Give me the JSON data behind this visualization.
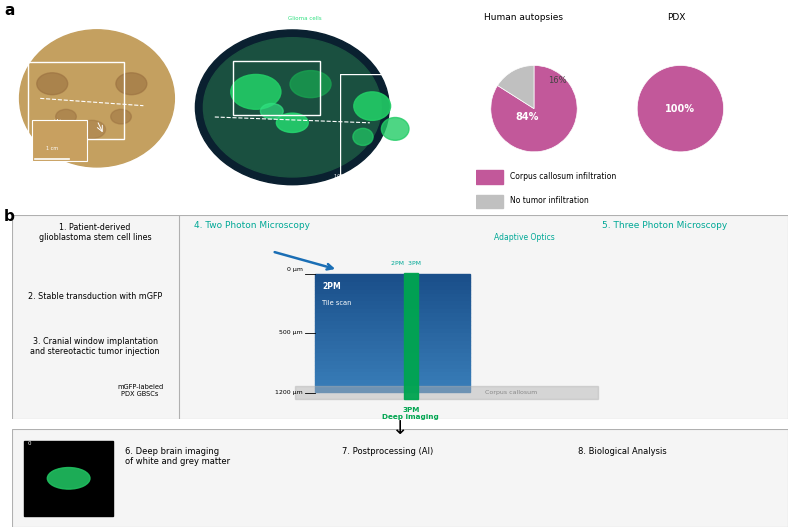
{
  "fig_width": 8.0,
  "fig_height": 5.3,
  "dpi": 100,
  "bg_color": "#ffffff",
  "panel_a_label": "a",
  "panel_b_label": "b",
  "pie1_title": "Human autopsies",
  "pie2_title": "PDX",
  "pie1_values": [
    84,
    16
  ],
  "pie2_values": [
    100
  ],
  "pie_colors_full": [
    "#c2589a",
    "#c0c0c0"
  ],
  "pie_color_single": [
    "#c2589a"
  ],
  "legend_labels": [
    "Corpus callosum infiltration",
    "No tumor infiltration"
  ],
  "legend_colors": [
    "#c2589a",
    "#c0c0c0"
  ],
  "pie1_pct_big": "84%",
  "pie1_pct_small": "16%",
  "pie2_pct": "100%",
  "step1_text": "1. Patient-derived\nglioblastoma stem cell lines",
  "step2_text": "2. Stable transduction with mGFP",
  "step3_text": "3. Cranial window implantation\nand stereotactic tumor injection",
  "step3b_text": "mGFP-labeled\nPDX GBSCs",
  "step4_text": "4. Two Photon Microscopy",
  "step5_text": "5. Three Photon Microscopy",
  "adaptive_text": "Adaptive Optics",
  "depth_labels": [
    "0 μm",
    "500 μm",
    "1200 μm"
  ],
  "depth_2pm_label": "2PM\nTile scan",
  "depth_3pm_label": "3PM\nDeep imaging",
  "depth_2pm_3pm": "2PM  3PM",
  "corpus_label": "Corpus callosum",
  "step6_text": "6. Deep brain imaging\nof white and grey matter",
  "step7_text": "7. Postprocessing (AI)",
  "step8_text": "8. Biological Analysis",
  "teal_color": "#00a896",
  "blue_color": "#1a6eb5",
  "green_color": "#00a550",
  "dark_gray": "#444444",
  "corpus_label_color": "#888888",
  "depth_box_color": "#1a4f8a",
  "brain1_bg": "#5a8ab0",
  "brain1_body": "#c4a060",
  "brain2_bg": "#040810",
  "inset_bg": "#001825"
}
